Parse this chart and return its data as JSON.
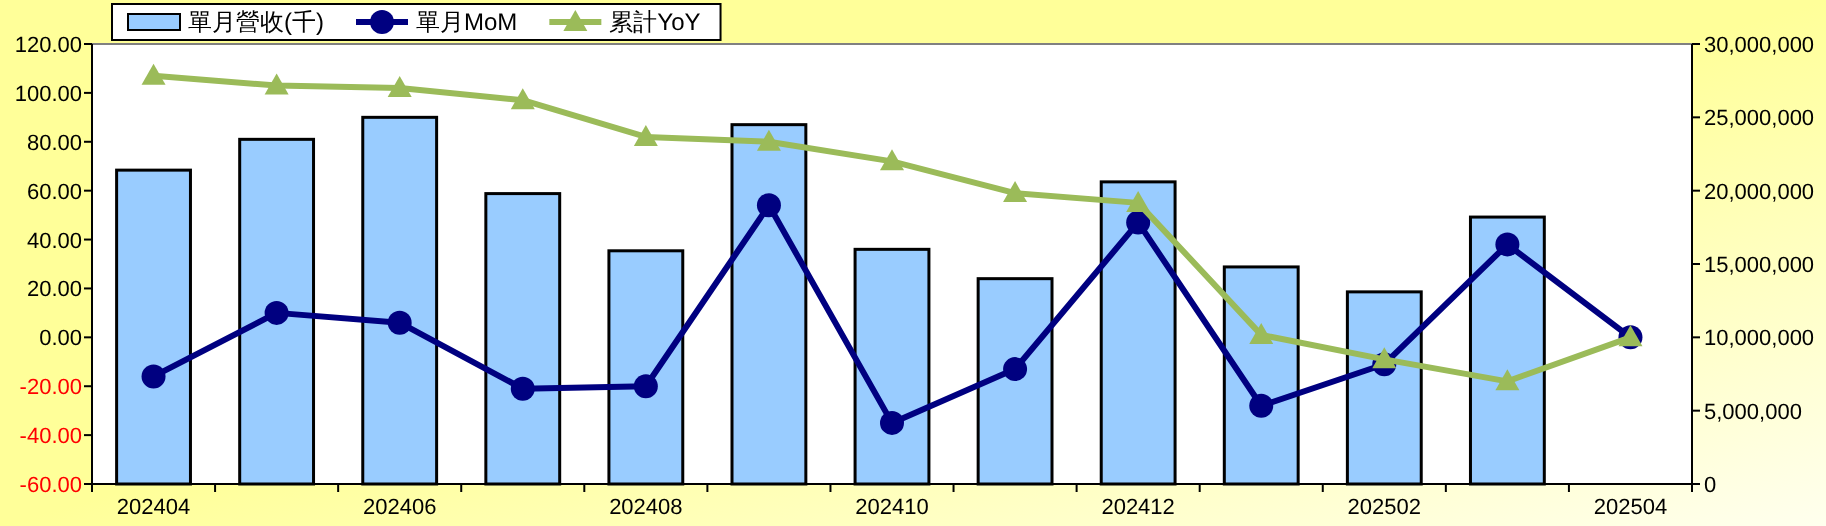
{
  "chart_data": {
    "type": "bar",
    "categories": [
      "202404",
      null,
      "202406",
      null,
      "202408",
      null,
      "202410",
      null,
      "202412",
      null,
      "202502",
      null,
      "202504"
    ],
    "series": [
      {
        "name": "單月營收(千)",
        "axis": "y2",
        "color": "#99ccff",
        "values": [
          21400000,
          23500000,
          25000000,
          19800000,
          15900000,
          24500000,
          16000000,
          14000000,
          20600000,
          14800000,
          13100000,
          18200000,
          null
        ]
      },
      {
        "name": "單月MoM",
        "type": "line",
        "marker": "circle",
        "color": "#000080",
        "values": [
          -16,
          10,
          6,
          -21,
          -20,
          54,
          -35,
          -13,
          47,
          -28,
          -11,
          38,
          0
        ]
      },
      {
        "name": "累計YoY",
        "type": "line",
        "marker": "triangle",
        "color": "#9bbb59",
        "values": [
          107,
          103,
          102,
          97,
          82,
          80,
          72,
          59,
          55,
          1,
          -9,
          -18,
          0
        ]
      }
    ],
    "ylim": [
      -60,
      120
    ],
    "yticks": [
      {
        "value": -60,
        "label": "-60.00"
      },
      {
        "value": -40,
        "label": "-40.00"
      },
      {
        "value": -20,
        "label": "-20.00"
      },
      {
        "value": 0,
        "label": "0.00"
      },
      {
        "value": 20,
        "label": "20.00"
      },
      {
        "value": 40,
        "label": "40.00"
      },
      {
        "value": 60,
        "label": "60.00"
      },
      {
        "value": 80,
        "label": "80.00"
      },
      {
        "value": 100,
        "label": "100.00"
      },
      {
        "value": 120,
        "label": "120.00"
      }
    ],
    "y2lim": [
      0,
      30000000
    ],
    "y2ticks": [
      0,
      {
        "value": 5000000,
        "label": "5,000,000"
      },
      {
        "value": 10000000,
        "label": "10,000,000"
      },
      {
        "value": 15000000,
        "label": "15,000,000"
      },
      {
        "value": 20000000,
        "label": "20,000,000"
      },
      {
        "value": 25000000,
        "label": "25,000,000"
      },
      {
        "value": 30000000,
        "label": "30,000,000"
      }
    ],
    "legend": "top left"
  }
}
